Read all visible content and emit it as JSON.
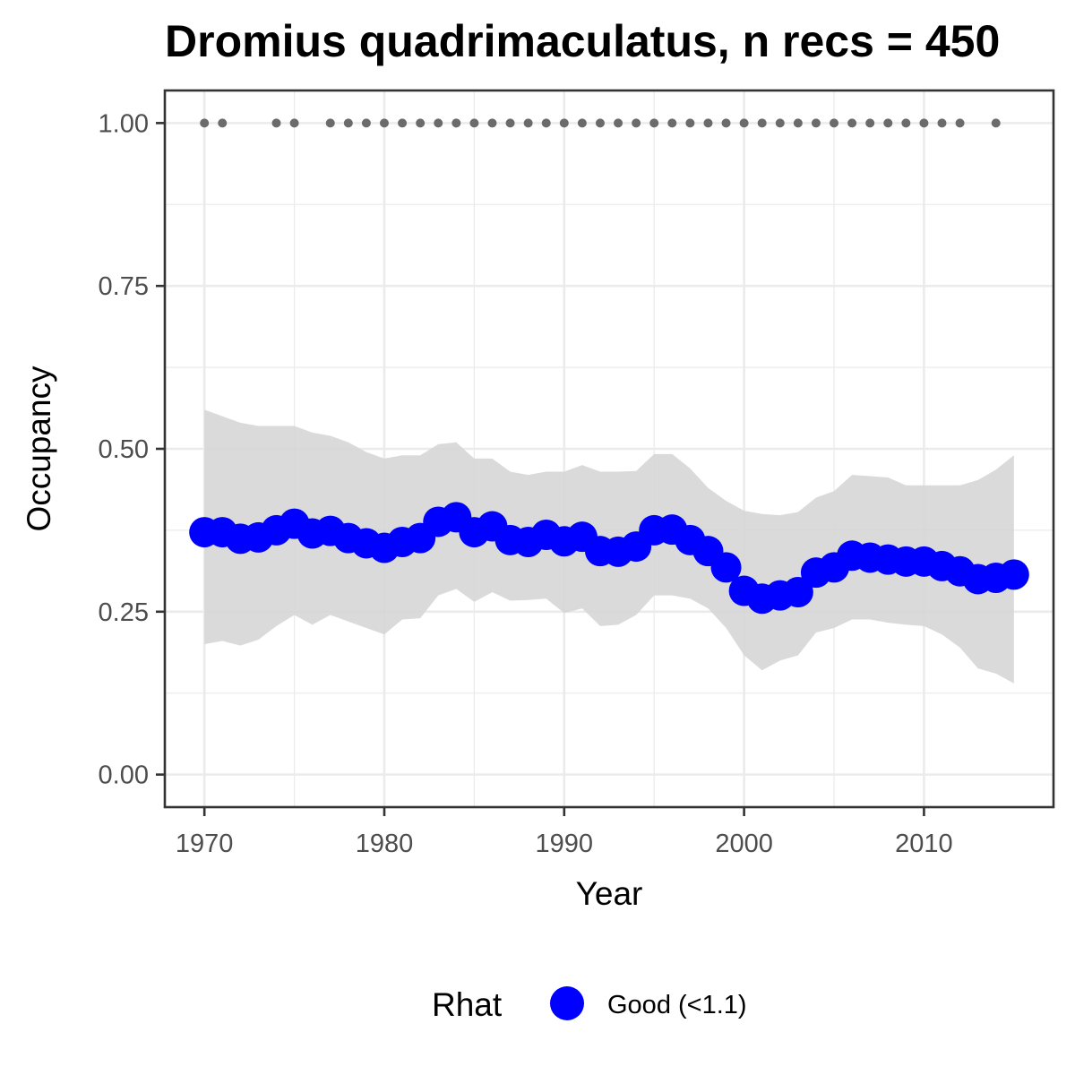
{
  "chart_data": {
    "type": "line",
    "title": "Dromius quadrimaculatus, n recs = 450",
    "xlabel": "Year",
    "ylabel": "Occupancy",
    "xlim": [
      1967.8,
      2017.2
    ],
    "ylim": [
      -0.05,
      1.05
    ],
    "x_ticks": [
      1970,
      1980,
      1990,
      2000,
      2010
    ],
    "x_tick_labels": [
      "1970",
      "1980",
      "1990",
      "2000",
      "2010"
    ],
    "y_ticks": [
      0,
      0.25,
      0.5,
      0.75,
      1.0
    ],
    "y_tick_labels": [
      "0.00",
      "0.25",
      "0.50",
      "0.75",
      "1.00"
    ],
    "grid": true,
    "legend": {
      "position": "bottom",
      "title": "Rhat",
      "entries": [
        {
          "label": "Good (<1.1)",
          "color": "#0000ff"
        }
      ]
    },
    "colors": {
      "line": "#0000ff",
      "ribbon": "#d6d6d6",
      "record_points": "#6b6b6b",
      "panel_border": "#333333",
      "grid": "#ebebeb"
    },
    "series": [
      {
        "name": "Good (<1.1)",
        "x": [
          1970,
          1971,
          1972,
          1973,
          1974,
          1975,
          1976,
          1977,
          1978,
          1979,
          1980,
          1981,
          1982,
          1983,
          1984,
          1985,
          1986,
          1987,
          1988,
          1989,
          1990,
          1991,
          1992,
          1993,
          1994,
          1995,
          1996,
          1997,
          1998,
          1999,
          2000,
          2001,
          2002,
          2003,
          2004,
          2005,
          2006,
          2007,
          2008,
          2009,
          2010,
          2011,
          2012,
          2013,
          2014,
          2015
        ],
        "y": [
          0.372,
          0.372,
          0.362,
          0.364,
          0.375,
          0.385,
          0.37,
          0.374,
          0.363,
          0.355,
          0.348,
          0.357,
          0.363,
          0.388,
          0.395,
          0.372,
          0.381,
          0.36,
          0.357,
          0.368,
          0.358,
          0.365,
          0.343,
          0.342,
          0.35,
          0.375,
          0.376,
          0.36,
          0.343,
          0.318,
          0.282,
          0.27,
          0.275,
          0.28,
          0.31,
          0.318,
          0.336,
          0.333,
          0.33,
          0.327,
          0.327,
          0.32,
          0.312,
          0.3,
          0.302,
          0.307
        ],
        "lower": [
          0.2,
          0.205,
          0.198,
          0.207,
          0.228,
          0.245,
          0.23,
          0.245,
          0.235,
          0.225,
          0.215,
          0.238,
          0.24,
          0.275,
          0.285,
          0.265,
          0.28,
          0.267,
          0.268,
          0.27,
          0.248,
          0.255,
          0.228,
          0.23,
          0.245,
          0.275,
          0.275,
          0.27,
          0.255,
          0.225,
          0.183,
          0.16,
          0.175,
          0.183,
          0.218,
          0.225,
          0.238,
          0.238,
          0.233,
          0.23,
          0.228,
          0.215,
          0.195,
          0.163,
          0.155,
          0.14
        ],
        "upper": [
          0.56,
          0.55,
          0.54,
          0.535,
          0.535,
          0.535,
          0.525,
          0.52,
          0.51,
          0.495,
          0.485,
          0.49,
          0.49,
          0.507,
          0.51,
          0.485,
          0.485,
          0.465,
          0.46,
          0.465,
          0.465,
          0.475,
          0.465,
          0.465,
          0.466,
          0.492,
          0.492,
          0.47,
          0.44,
          0.42,
          0.405,
          0.4,
          0.398,
          0.403,
          0.425,
          0.435,
          0.46,
          0.458,
          0.456,
          0.444,
          0.444,
          0.444,
          0.444,
          0.452,
          0.468,
          0.49
        ]
      }
    ],
    "record_years": [
      1970,
      1971,
      1974,
      1975,
      1977,
      1978,
      1979,
      1980,
      1981,
      1982,
      1983,
      1984,
      1985,
      1986,
      1987,
      1988,
      1989,
      1990,
      1991,
      1992,
      1993,
      1994,
      1995,
      1996,
      1997,
      1998,
      1999,
      2000,
      2001,
      2002,
      2003,
      2004,
      2005,
      2006,
      2007,
      2008,
      2009,
      2010,
      2011,
      2012,
      2014
    ],
    "record_value": 1.0
  }
}
